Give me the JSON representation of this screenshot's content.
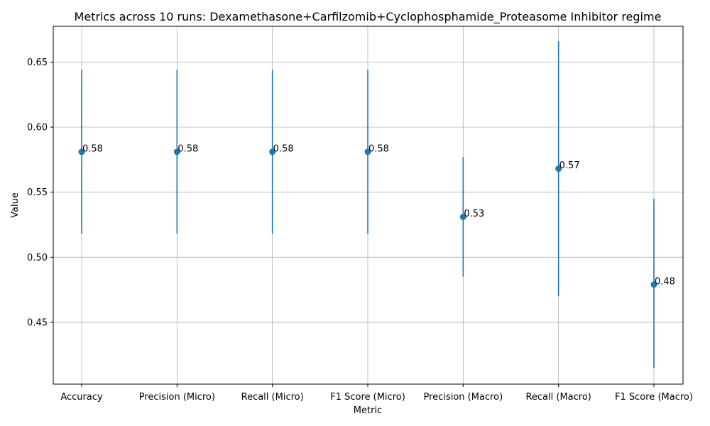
{
  "chart_data": {
    "type": "scatter",
    "title": "Metrics across 10 runs: Dexamethasone+Carfilzomib+Cyclophosphamide_Proteasome Inhibitor regime",
    "xlabel": "Metric",
    "ylabel": "Value",
    "categories": [
      "Accuracy",
      "Precision (Micro)",
      "Recall (Micro)",
      "F1 Score (Micro)",
      "Precision (Macro)",
      "Recall (Macro)",
      "F1 Score (Macro)"
    ],
    "values": [
      0.581,
      0.581,
      0.581,
      0.581,
      0.531,
      0.568,
      0.479
    ],
    "lower": [
      0.518,
      0.518,
      0.518,
      0.518,
      0.485,
      0.47,
      0.415
    ],
    "upper": [
      0.644,
      0.644,
      0.644,
      0.644,
      0.577,
      0.666,
      0.545
    ],
    "data_labels": [
      "0.58",
      "0.58",
      "0.58",
      "0.58",
      "0.53",
      "0.57",
      "0.48"
    ],
    "yticks": [
      0.45,
      0.5,
      0.55,
      0.6,
      0.65
    ],
    "ytick_labels": [
      "0.45",
      "0.50",
      "0.55",
      "0.60",
      "0.65"
    ],
    "ylim": [
      0.4025,
      0.6775
    ],
    "grid": true,
    "colors": {
      "series": "#1f77b4",
      "grid": "#b0b0b0"
    }
  }
}
